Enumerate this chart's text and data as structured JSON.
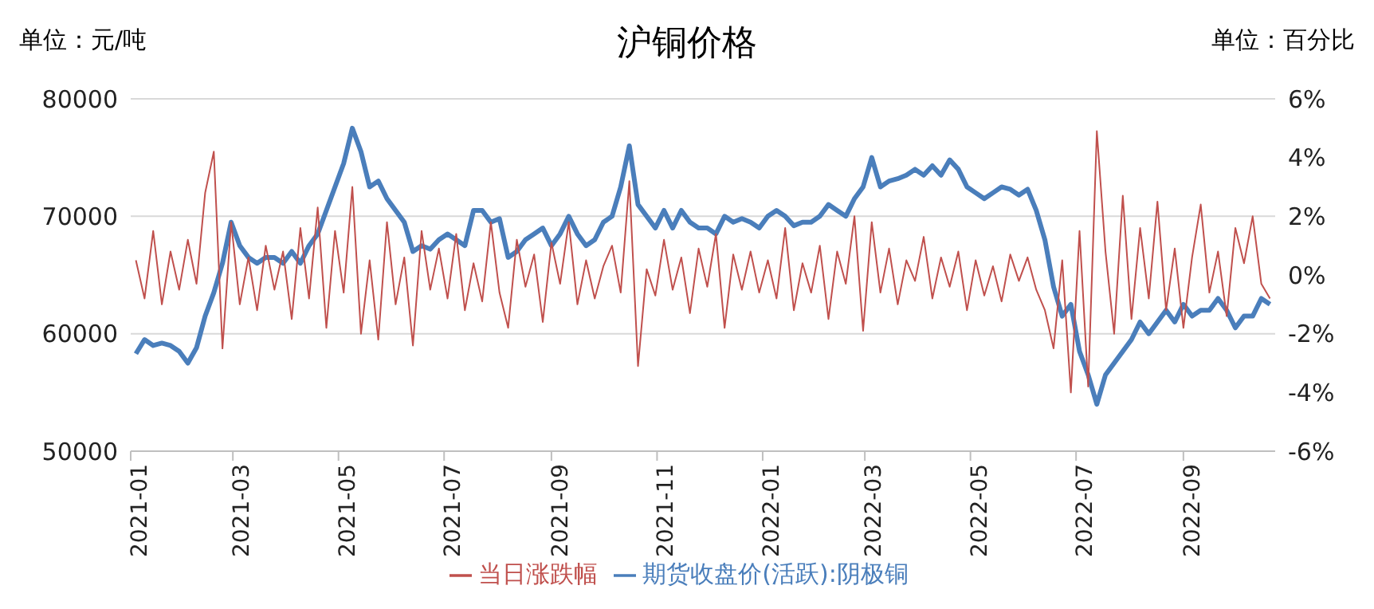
{
  "chart_data": {
    "type": "line",
    "title": "沪铜价格",
    "annotations": [
      "单位：元/吨",
      "单位：百分比"
    ],
    "x": [
      "2021-01-04",
      "2021-01-09",
      "2021-01-14",
      "2021-01-19",
      "2021-01-24",
      "2021-01-29",
      "2021-02-03",
      "2021-02-08",
      "2021-02-13",
      "2021-02-18",
      "2021-02-23",
      "2021-02-28",
      "2021-03-05",
      "2021-03-10",
      "2021-03-15",
      "2021-03-20",
      "2021-03-25",
      "2021-03-30",
      "2021-04-04",
      "2021-04-09",
      "2021-04-14",
      "2021-04-19",
      "2021-04-24",
      "2021-04-29",
      "2021-05-04",
      "2021-05-09",
      "2021-05-14",
      "2021-05-19",
      "2021-05-24",
      "2021-05-29",
      "2021-06-03",
      "2021-06-08",
      "2021-06-13",
      "2021-06-18",
      "2021-06-23",
      "2021-06-28",
      "2021-07-03",
      "2021-07-08",
      "2021-07-13",
      "2021-07-18",
      "2021-07-23",
      "2021-07-28",
      "2021-08-02",
      "2021-08-07",
      "2021-08-12",
      "2021-08-17",
      "2021-08-22",
      "2021-08-27",
      "2021-09-01",
      "2021-09-06",
      "2021-09-11",
      "2021-09-16",
      "2021-09-21",
      "2021-09-26",
      "2021-10-01",
      "2021-10-06",
      "2021-10-11",
      "2021-10-16",
      "2021-10-21",
      "2021-10-26",
      "2021-10-31",
      "2021-11-05",
      "2021-11-10",
      "2021-11-15",
      "2021-11-20",
      "2021-11-25",
      "2021-11-30",
      "2021-12-05",
      "2021-12-10",
      "2021-12-15",
      "2021-12-20",
      "2021-12-25",
      "2021-12-30",
      "2022-01-04",
      "2022-01-09",
      "2022-01-14",
      "2022-01-19",
      "2022-01-24",
      "2022-01-29",
      "2022-02-03",
      "2022-02-08",
      "2022-02-13",
      "2022-02-18",
      "2022-02-23",
      "2022-02-28",
      "2022-03-05",
      "2022-03-10",
      "2022-03-15",
      "2022-03-20",
      "2022-03-25",
      "2022-03-30",
      "2022-04-04",
      "2022-04-09",
      "2022-04-14",
      "2022-04-19",
      "2022-04-24",
      "2022-04-29",
      "2022-05-04",
      "2022-05-09",
      "2022-05-14",
      "2022-05-19",
      "2022-05-24",
      "2022-05-29",
      "2022-06-03",
      "2022-06-08",
      "2022-06-13",
      "2022-06-18",
      "2022-06-23",
      "2022-06-28",
      "2022-07-03",
      "2022-07-08",
      "2022-07-13",
      "2022-07-18",
      "2022-07-23",
      "2022-07-28",
      "2022-08-02",
      "2022-08-07",
      "2022-08-12",
      "2022-08-17",
      "2022-08-22",
      "2022-08-27",
      "2022-09-01",
      "2022-09-06",
      "2022-09-11",
      "2022-09-16",
      "2022-09-21",
      "2022-09-26",
      "2022-10-01",
      "2022-10-06",
      "2022-10-11",
      "2022-10-16",
      "2022-10-21"
    ],
    "series": [
      {
        "name": "期货收盘价(活跃):阴极铜",
        "color": "#4a7ebb",
        "values": [
          58300,
          59500,
          59000,
          59200,
          59000,
          58500,
          57500,
          58800,
          61500,
          63500,
          66000,
          69500,
          67500,
          66500,
          66000,
          66500,
          66500,
          66000,
          67000,
          66000,
          67500,
          68500,
          70500,
          72500,
          74500,
          77500,
          75500,
          72500,
          73000,
          71500,
          70500,
          69500,
          67000,
          67500,
          67200,
          68000,
          68500,
          68000,
          67500,
          70500,
          70500,
          69500,
          69800,
          66500,
          67000,
          68000,
          68500,
          69000,
          67500,
          68500,
          70000,
          68500,
          67500,
          68000,
          69500,
          70000,
          72500,
          76000,
          71000,
          70000,
          69000,
          70500,
          69000,
          70500,
          69500,
          69000,
          69000,
          68500,
          70000,
          69500,
          69800,
          69500,
          69000,
          70000,
          70500,
          70000,
          69200,
          69500,
          69500,
          70000,
          71000,
          70500,
          70000,
          71500,
          72500,
          75000,
          72500,
          73000,
          73200,
          73500,
          74000,
          73500,
          74300,
          73500,
          74800,
          74000,
          72500,
          72000,
          71500,
          72000,
          72500,
          72300,
          71800,
          72300,
          70500,
          68000,
          64000,
          61500,
          62500,
          58500,
          56500,
          54000,
          56500,
          57500,
          58500,
          59500,
          61000,
          60000,
          61000,
          62000,
          61000,
          62500,
          61500,
          62000,
          62000,
          63000,
          62000,
          60500,
          61500,
          61500,
          63000,
          62500
        ]
      },
      {
        "name": "当日涨跌幅",
        "color": "#c0504d",
        "axis": "y2",
        "values": [
          0.5,
          -0.8,
          1.5,
          -1.0,
          0.8,
          -0.5,
          1.2,
          -0.3,
          2.8,
          4.2,
          -2.5,
          1.8,
          -1.0,
          0.6,
          -1.2,
          1.0,
          -0.5,
          0.8,
          -1.5,
          1.6,
          -0.8,
          2.3,
          -1.8,
          1.5,
          -0.6,
          3.0,
          -2.0,
          0.5,
          -2.2,
          1.8,
          -1.0,
          0.6,
          -2.4,
          1.5,
          -0.5,
          0.9,
          -0.8,
          1.4,
          -1.2,
          0.4,
          -0.9,
          1.8,
          -0.6,
          -1.8,
          1.2,
          -0.4,
          0.7,
          -1.6,
          1.1,
          -0.3,
          1.8,
          -1.0,
          0.5,
          -0.8,
          0.3,
          1.0,
          -0.6,
          3.2,
          -3.1,
          0.2,
          -0.7,
          1.2,
          -0.5,
          0.6,
          -1.3,
          0.9,
          -0.4,
          1.4,
          -1.8,
          0.7,
          -0.5,
          0.8,
          -0.6,
          0.5,
          -0.8,
          1.6,
          -1.2,
          0.4,
          -0.6,
          1.0,
          -1.5,
          0.8,
          -0.3,
          2.0,
          -1.9,
          1.8,
          -0.6,
          0.9,
          -1.0,
          0.5,
          -0.2,
          1.3,
          -0.8,
          0.6,
          -0.4,
          0.8,
          -1.2,
          0.5,
          -0.7,
          0.3,
          -0.9,
          0.7,
          -0.2,
          0.6,
          -0.5,
          -1.2,
          -2.5,
          0.5,
          -4.0,
          1.5,
          -3.8,
          4.9,
          0.8,
          -2.0,
          2.7,
          -1.5,
          1.6,
          -0.8,
          2.5,
          -1.2,
          0.9,
          -1.8,
          0.6,
          2.4,
          -0.6,
          0.8,
          -1.4,
          1.6,
          0.4,
          2.0,
          -0.3,
          -0.8
        ]
      }
    ],
    "xlim": [
      "2021-01-01",
      "2022-10-24"
    ],
    "xticks": [
      "2021-01",
      "2021-03",
      "2021-05",
      "2021-07",
      "2021-09",
      "2021-11",
      "2022-01",
      "2022-03",
      "2022-05",
      "2022-07",
      "2022-09"
    ],
    "ylim": [
      50000,
      80000
    ],
    "yticks": [
      50000,
      60000,
      70000,
      80000
    ],
    "y2lim": [
      -6,
      6
    ],
    "y2ticks": [
      {
        "value": -6,
        "label": "-6%"
      },
      {
        "value": -4,
        "label": "-4%"
      },
      {
        "value": -2,
        "label": "-2%"
      },
      {
        "value": 0,
        "label": "0%"
      },
      {
        "value": 2,
        "label": "2%"
      },
      {
        "value": 4,
        "label": "4%"
      },
      {
        "value": 6,
        "label": "6%"
      }
    ],
    "grid": "y",
    "legend": "bottom",
    "marker": "none",
    "line_style": "solid"
  }
}
